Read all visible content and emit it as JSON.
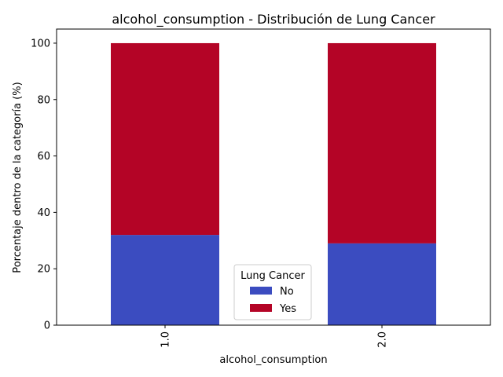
{
  "chart_data": {
    "type": "bar",
    "stacked": true,
    "title": "alcohol_consumption - Distribución de Lung Cancer",
    "xlabel": "alcohol_consumption",
    "ylabel": "Porcentaje dentro de la categoría (%)",
    "categories": [
      "1.0",
      "2.0"
    ],
    "series": [
      {
        "name": "No",
        "values": [
          32,
          29
        ],
        "color": "#3b4cc0"
      },
      {
        "name": "Yes",
        "values": [
          68,
          71
        ],
        "color": "#b40426"
      }
    ],
    "ylim": [
      0,
      105
    ],
    "yticks": [
      "0",
      "20",
      "40",
      "60",
      "80",
      "100"
    ],
    "xtick_rotation": "vertical",
    "grid": false,
    "legend": {
      "title": "Lung Cancer",
      "placement": "lower-center"
    }
  }
}
